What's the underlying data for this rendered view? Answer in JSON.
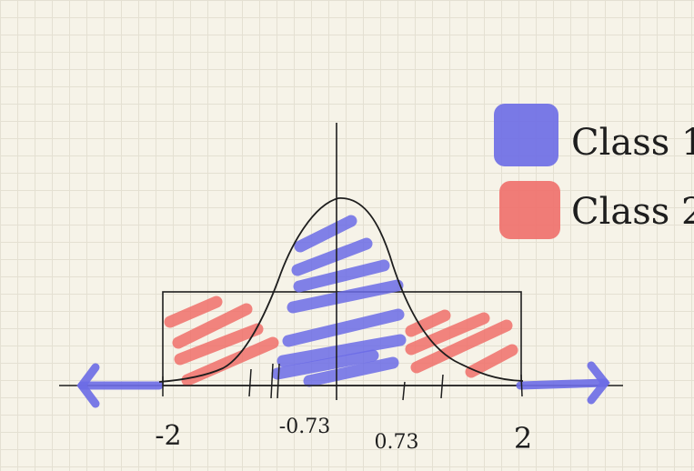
{
  "axis_ticks": [
    "-2",
    "-0.73",
    "0.73",
    "2"
  ],
  "legend": [
    {
      "label": "Class 1",
      "color": "#6b6be6"
    },
    {
      "label": "Class 2",
      "color": "#f06f6a"
    }
  ],
  "colors": {
    "class1": "#6b6be6",
    "class2": "#f06f6a",
    "ink": "#1e1e1e",
    "paper": "#f6f3e8"
  }
}
